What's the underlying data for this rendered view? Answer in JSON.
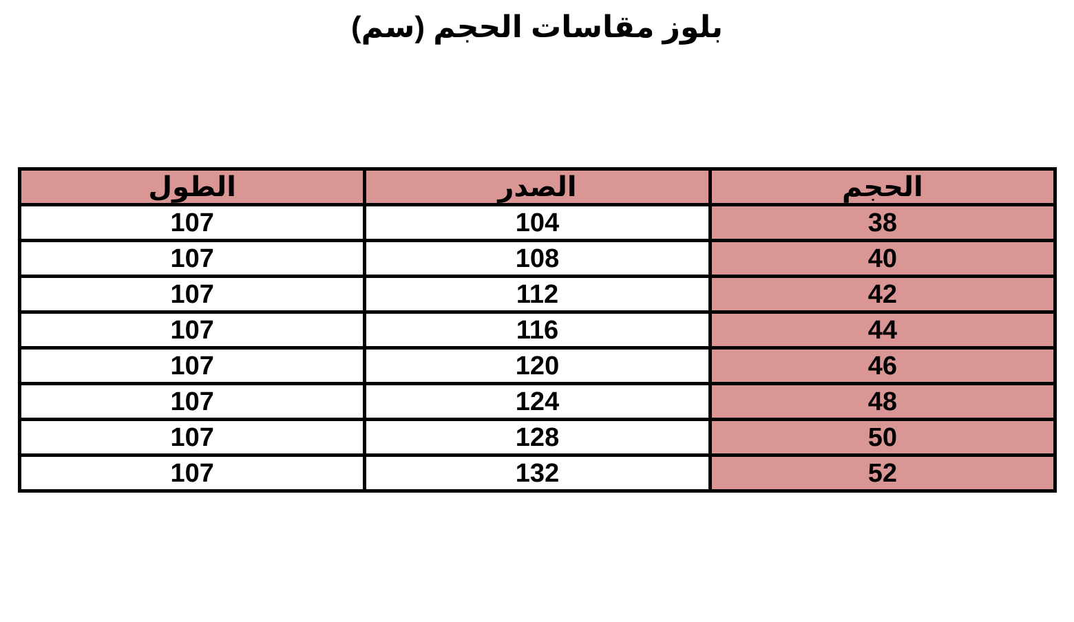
{
  "page": {
    "title": "بلوز مقاسات الحجم (سم)",
    "background_color": "#ffffff"
  },
  "table": {
    "header_background": "#d99694",
    "size_column_background": "#d99694",
    "border_color": "#000000",
    "columns": [
      {
        "key": "size",
        "label": "الحجم"
      },
      {
        "key": "chest",
        "label": "الصدر"
      },
      {
        "key": "length",
        "label": "الطول"
      }
    ],
    "rows": [
      {
        "size": "38",
        "chest": "104",
        "length": "107"
      },
      {
        "size": "40",
        "chest": "108",
        "length": "107"
      },
      {
        "size": "42",
        "chest": "112",
        "length": "107"
      },
      {
        "size": "44",
        "chest": "116",
        "length": "107"
      },
      {
        "size": "46",
        "chest": "120",
        "length": "107"
      },
      {
        "size": "48",
        "chest": "124",
        "length": "107"
      },
      {
        "size": "50",
        "chest": "128",
        "length": "107"
      },
      {
        "size": "52",
        "chest": "132",
        "length": "107"
      }
    ]
  },
  "chart_data": {
    "type": "table",
    "title": "بلوز مقاسات الحجم (سم)",
    "direction": "rtl",
    "columns": [
      "الحجم",
      "الصدر",
      "الطول"
    ],
    "column_meanings_en": [
      "size",
      "chest",
      "length"
    ],
    "rows": [
      [
        38,
        104,
        107
      ],
      [
        40,
        108,
        107
      ],
      [
        42,
        112,
        107
      ],
      [
        44,
        116,
        107
      ],
      [
        46,
        120,
        107
      ],
      [
        48,
        124,
        107
      ],
      [
        50,
        128,
        107
      ],
      [
        52,
        132,
        107
      ]
    ],
    "units": "سم",
    "highlight": "header row and size column shaded #d99694"
  }
}
